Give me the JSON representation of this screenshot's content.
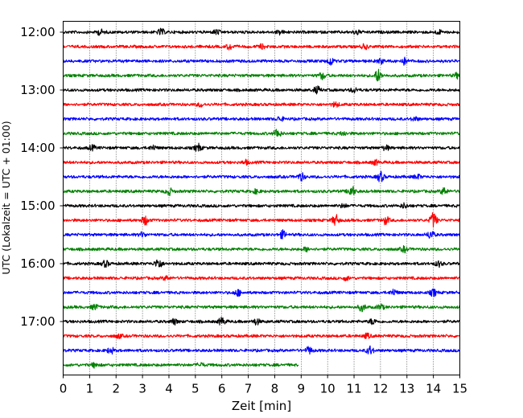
{
  "chart_data": {
    "type": "line",
    "title": "",
    "xlabel": "Zeit  [min]",
    "ylabel": "UTC (Lokalzeit = UTC + 01:00)",
    "xlim": [
      0,
      15
    ],
    "x_ticks": [
      0,
      1,
      2,
      3,
      4,
      5,
      6,
      7,
      8,
      9,
      10,
      11,
      12,
      13,
      14,
      15
    ],
    "y_ticks": [
      "12:00",
      "13:00",
      "14:00",
      "15:00",
      "16:00",
      "17:00"
    ],
    "grid": {
      "x": "dotted",
      "y": false
    },
    "trace_start": "12:00",
    "trace_interval_min": 15,
    "last_trace_end_min": 8.9,
    "color_cycle": [
      "#000000",
      "#ff0000",
      "#0000ff",
      "#008000"
    ],
    "series": [
      {
        "start": "12:00",
        "color": "#000000",
        "events": [
          [
            1.4,
            0.7
          ],
          [
            3.7,
            0.8
          ],
          [
            5.8,
            0.6
          ],
          [
            8.2,
            0.5
          ],
          [
            11.1,
            0.6
          ],
          [
            14.2,
            0.5
          ]
        ]
      },
      {
        "start": "12:15",
        "color": "#ff0000",
        "events": [
          [
            6.3,
            0.7
          ],
          [
            7.5,
            0.5
          ],
          [
            11.4,
            0.6
          ]
        ]
      },
      {
        "start": "12:30",
        "color": "#0000ff",
        "events": [
          [
            10.1,
            1.0
          ],
          [
            12.0,
            0.6
          ],
          [
            12.9,
            0.8
          ]
        ]
      },
      {
        "start": "12:45",
        "color": "#008000",
        "events": [
          [
            9.8,
            0.9
          ],
          [
            11.9,
            1.6
          ],
          [
            14.9,
            0.6
          ]
        ]
      },
      {
        "start": "13:00",
        "color": "#000000",
        "events": [
          [
            9.6,
            0.9
          ],
          [
            11.0,
            0.6
          ]
        ]
      },
      {
        "start": "13:15",
        "color": "#ff0000",
        "events": [
          [
            5.2,
            0.5
          ],
          [
            10.3,
            0.6
          ]
        ]
      },
      {
        "start": "13:30",
        "color": "#0000ff",
        "events": [
          [
            8.2,
            0.6
          ],
          [
            13.3,
            0.5
          ]
        ]
      },
      {
        "start": "13:45",
        "color": "#008000",
        "events": [
          [
            8.1,
            1.2
          ],
          [
            10.6,
            0.5
          ]
        ]
      },
      {
        "start": "14:00",
        "color": "#000000",
        "events": [
          [
            1.1,
            0.6
          ],
          [
            5.1,
            1.0
          ],
          [
            3.4,
            0.6
          ],
          [
            12.2,
            0.6
          ]
        ]
      },
      {
        "start": "14:15",
        "color": "#ff0000",
        "events": [
          [
            11.8,
            0.6
          ],
          [
            6.9,
            0.5
          ]
        ]
      },
      {
        "start": "14:30",
        "color": "#0000ff",
        "events": [
          [
            9.0,
            1.0
          ],
          [
            12.0,
            1.3
          ],
          [
            13.4,
            0.6
          ]
        ]
      },
      {
        "start": "14:45",
        "color": "#008000",
        "events": [
          [
            4.0,
            0.9
          ],
          [
            10.9,
            1.5
          ],
          [
            14.4,
            0.9
          ],
          [
            7.3,
            0.5
          ]
        ]
      },
      {
        "start": "15:00",
        "color": "#000000",
        "events": [
          [
            12.9,
            0.6
          ],
          [
            10.6,
            0.5
          ]
        ]
      },
      {
        "start": "15:15",
        "color": "#ff0000",
        "events": [
          [
            3.1,
            1.2
          ],
          [
            10.3,
            1.4
          ],
          [
            12.2,
            1.0
          ],
          [
            14.0,
            2.0
          ]
        ]
      },
      {
        "start": "15:30",
        "color": "#0000ff",
        "events": [
          [
            8.3,
            1.0
          ],
          [
            13.9,
            1.1
          ],
          [
            3.0,
            0.6
          ]
        ]
      },
      {
        "start": "15:45",
        "color": "#008000",
        "events": [
          [
            12.9,
            0.7
          ],
          [
            9.2,
            0.5
          ]
        ]
      },
      {
        "start": "16:00",
        "color": "#000000",
        "events": [
          [
            1.6,
            0.8
          ],
          [
            3.6,
            1.4
          ],
          [
            14.2,
            0.7
          ]
        ]
      },
      {
        "start": "16:15",
        "color": "#ff0000",
        "events": [
          [
            3.9,
            0.5
          ],
          [
            10.7,
            0.5
          ]
        ]
      },
      {
        "start": "16:30",
        "color": "#0000ff",
        "events": [
          [
            6.6,
            0.8
          ],
          [
            12.5,
            0.8
          ],
          [
            14.0,
            0.9
          ]
        ]
      },
      {
        "start": "16:45",
        "color": "#008000",
        "events": [
          [
            1.2,
            0.7
          ],
          [
            11.3,
            1.0
          ],
          [
            12.0,
            0.7
          ]
        ]
      },
      {
        "start": "17:00",
        "color": "#000000",
        "events": [
          [
            4.2,
            0.7
          ],
          [
            6.0,
            1.0
          ],
          [
            7.3,
            0.8
          ],
          [
            11.7,
            0.7
          ]
        ]
      },
      {
        "start": "17:15",
        "color": "#ff0000",
        "events": [
          [
            2.1,
            0.5
          ],
          [
            11.5,
            0.6
          ]
        ]
      },
      {
        "start": "17:30",
        "color": "#0000ff",
        "events": [
          [
            1.8,
            0.8
          ],
          [
            9.3,
            0.9
          ],
          [
            11.6,
            1.1
          ]
        ]
      },
      {
        "start": "17:45",
        "color": "#008000",
        "events": [
          [
            1.2,
            0.6
          ],
          [
            5.2,
            0.5
          ]
        ]
      }
    ]
  }
}
